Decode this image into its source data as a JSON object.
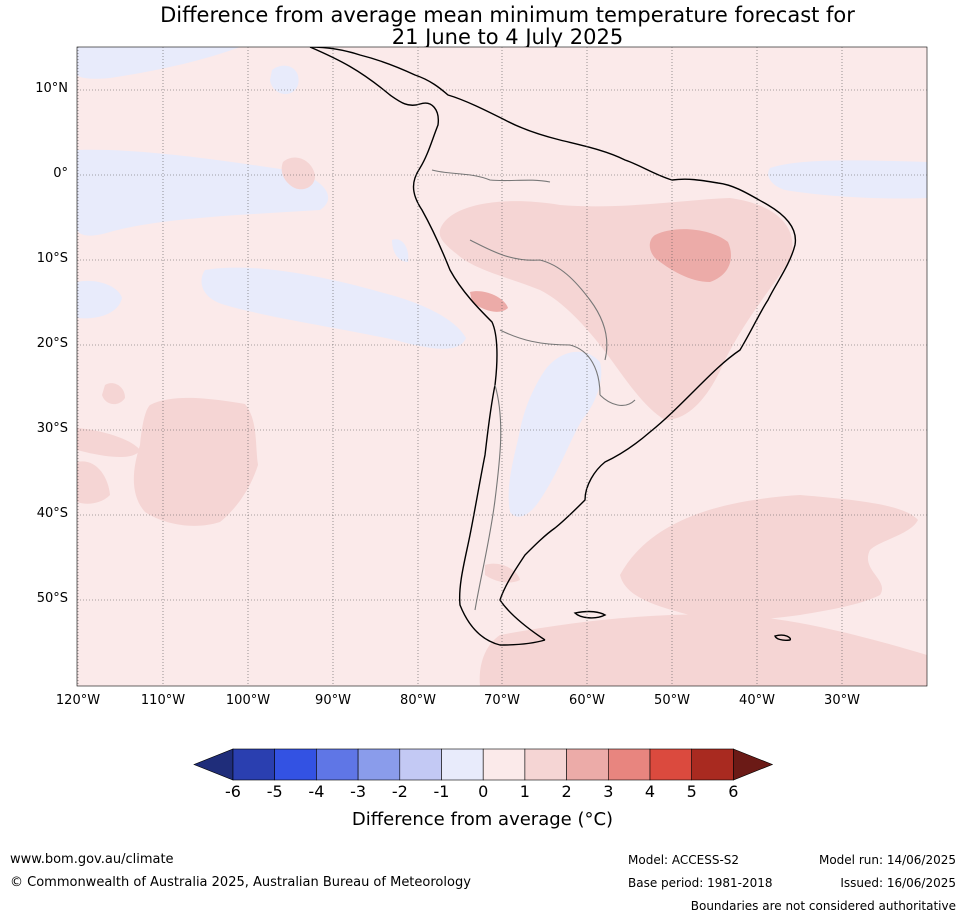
{
  "title_line1": "Difference from average mean minimum temperature forecast for",
  "title_line2": "21 June to 4 July 2025",
  "lat_labels": [
    "10°N",
    "0°",
    "10°S",
    "20°S",
    "30°S",
    "40°S",
    "50°S"
  ],
  "lon_labels": [
    "120°W",
    "110°W",
    "100°W",
    "90°W",
    "80°W",
    "70°W",
    "60°W",
    "50°W",
    "40°W",
    "30°W"
  ],
  "colorbar": {
    "ticks": [
      "-6",
      "-5",
      "-4",
      "-3",
      "-2",
      "-1",
      "0",
      "1",
      "2",
      "3",
      "4",
      "5",
      "6"
    ],
    "colors": [
      "#1f2d7a",
      "#2a3fb0",
      "#3352e3",
      "#5f76e6",
      "#8a9ceb",
      "#c3c9f4",
      "#e8ebfb",
      "#fbeaea",
      "#f5d5d4",
      "#ecaba8",
      "#e8857f",
      "#db4a3e",
      "#a92a20",
      "#6b1a16"
    ],
    "label": "Difference from average (°C)"
  },
  "footer": {
    "website": "www.bom.gov.au/climate",
    "copyright": "© Commonwealth of Australia 2025, Australian Bureau of Meteorology",
    "model": "Model: ACCESS-S2",
    "base_period": "Base period: 1981-2018",
    "model_run": "Model run: 14/06/2025",
    "issued": "Issued: 16/06/2025",
    "disclaimer": "Boundaries are not considered authoritative"
  }
}
